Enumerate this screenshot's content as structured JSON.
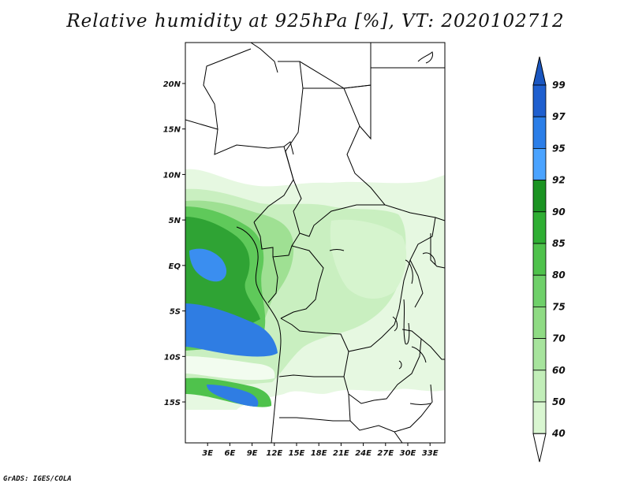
{
  "title": "Relative humidity at 925hPa [%], VT: 2020102712",
  "credit": "GrADS: IGES/COLA",
  "map": {
    "lat_labels": [
      "20N",
      "15N",
      "10N",
      "5N",
      "EQ",
      "5S",
      "10S",
      "15S"
    ],
    "lon_labels": [
      "3E",
      "6E",
      "9E",
      "12E",
      "15E",
      "18E",
      "21E",
      "24E",
      "27E",
      "30E",
      "33E"
    ],
    "lat_values": [
      20,
      15,
      10,
      5,
      0,
      -5,
      -10,
      -15
    ],
    "lon_values": [
      3,
      6,
      9,
      12,
      15,
      18,
      21,
      24,
      27,
      30,
      33
    ],
    "lon_range": [
      0,
      35
    ],
    "lat_range": [
      -19.5,
      24.5
    ]
  },
  "colorbar": {
    "levels": [
      "40",
      "50",
      "60",
      "70",
      "75",
      "80",
      "85",
      "90",
      "92",
      "95",
      "97",
      "99"
    ],
    "colors": [
      "#eefbea",
      "#d9f6d1",
      "#c2eeb9",
      "#a7e49d",
      "#8fdb84",
      "#6fd06a",
      "#4fc24c",
      "#2fae33",
      "#1b9322",
      "#4aa3ff",
      "#2b7ee8",
      "#1f5fcf"
    ],
    "below_color": "#ffffff",
    "above_color": "#1a56c0"
  },
  "colors": {
    "light_green": "#e4f8df",
    "mid_green": "#a9e49d",
    "green": "#5fc95a",
    "dark_green": "#2d9e30",
    "blue": "#2f7de3",
    "boundary": "#000000"
  }
}
